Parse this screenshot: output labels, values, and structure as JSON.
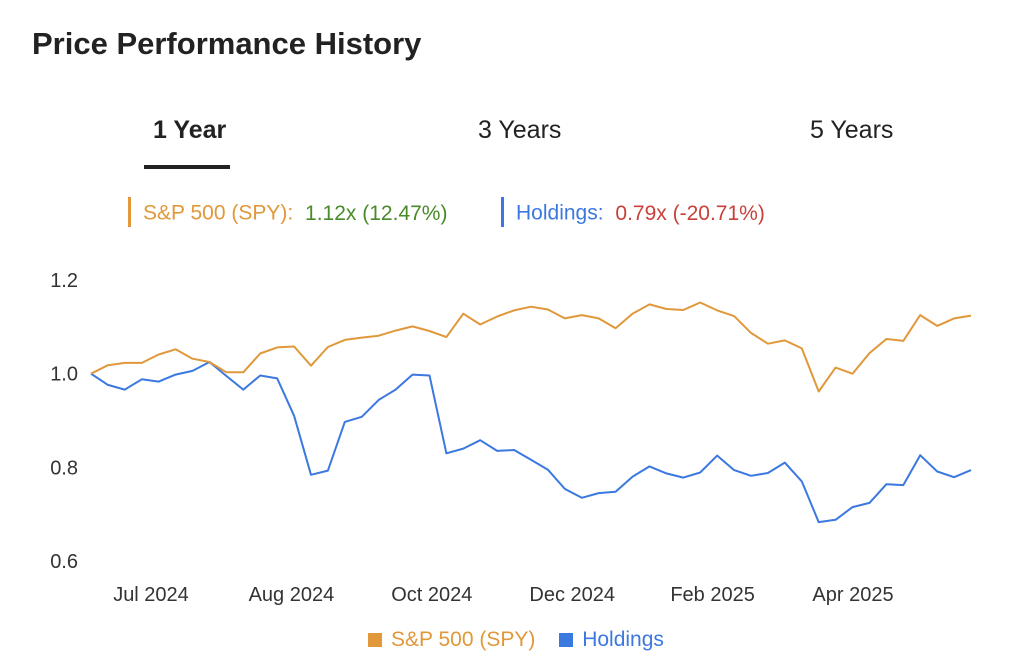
{
  "title": "Price Performance History",
  "tabs": [
    {
      "label": "1 Year",
      "active": true
    },
    {
      "label": "3 Years",
      "active": false
    },
    {
      "label": "5 Years",
      "active": false
    }
  ],
  "summary": {
    "spy": {
      "label": "S&P 500 (SPY):",
      "value": "1.12x (12.47%)",
      "value_color": "#4a8a2a"
    },
    "holdings": {
      "label": "Holdings:",
      "value": "0.79x (-20.71%)",
      "value_color": "#c8403a"
    }
  },
  "colors": {
    "spy": "#e0983a",
    "holdings": "#3b78e0"
  },
  "chart_data": {
    "type": "line",
    "title": "",
    "xlabel": "",
    "ylabel": "",
    "ylim": [
      0.6,
      1.2
    ],
    "yticks": [
      "1.2",
      "1.0",
      "0.8",
      "0.6"
    ],
    "xticks": [
      "Jul 2024",
      "Aug 2024",
      "Oct 2024",
      "Dec 2024",
      "Feb 2025",
      "Apr 2025"
    ],
    "grid": false,
    "legend_position": "bottom",
    "series": [
      {
        "name": "S&P 500 (SPY)",
        "key": "spy",
        "values": [
          1.0,
          1.018,
          1.023,
          1.023,
          1.041,
          1.052,
          1.032,
          1.025,
          1.003,
          1.003,
          1.043,
          1.056,
          1.058,
          1.017,
          1.057,
          1.072,
          1.077,
          1.081,
          1.092,
          1.101,
          1.091,
          1.078,
          1.128,
          1.105,
          1.122,
          1.135,
          1.143,
          1.137,
          1.118,
          1.125,
          1.118,
          1.097,
          1.128,
          1.148,
          1.138,
          1.136,
          1.152,
          1.135,
          1.123,
          1.087,
          1.064,
          1.071,
          1.054,
          0.962,
          1.013,
          1.0,
          1.044,
          1.074,
          1.07,
          1.125,
          1.102,
          1.118,
          1.124
        ]
      },
      {
        "name": "Holdings",
        "key": "holdings",
        "values": [
          1.0,
          0.976,
          0.966,
          0.988,
          0.983,
          0.998,
          1.006,
          1.025,
          0.995,
          0.966,
          0.996,
          0.99,
          0.91,
          0.784,
          0.793,
          0.897,
          0.908,
          0.944,
          0.966,
          0.998,
          0.996,
          0.83,
          0.84,
          0.858,
          0.835,
          0.837,
          0.816,
          0.795,
          0.754,
          0.735,
          0.745,
          0.748,
          0.78,
          0.802,
          0.787,
          0.778,
          0.789,
          0.825,
          0.794,
          0.782,
          0.788,
          0.81,
          0.77,
          0.683,
          0.688,
          0.715,
          0.724,
          0.764,
          0.762,
          0.826,
          0.791,
          0.779,
          0.794
        ]
      }
    ]
  }
}
